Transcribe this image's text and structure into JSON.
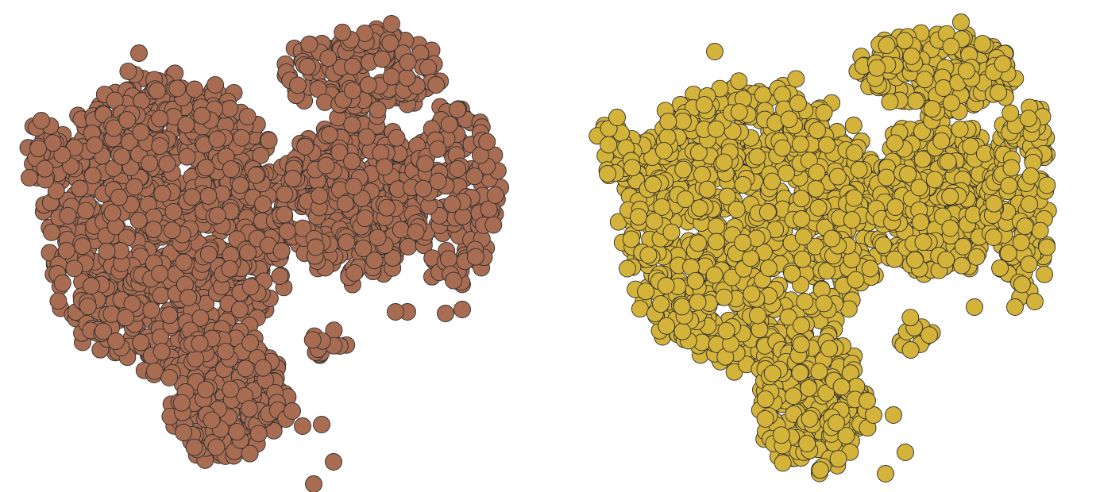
{
  "chart_data": [
    {
      "type": "scatter",
      "title": "",
      "xlabel": "",
      "ylabel": "",
      "grid": false,
      "legend": "none",
      "axes_visible": false,
      "xlim": [
        0,
        620
      ],
      "ylim": [
        0,
        600
      ],
      "marker": {
        "shape": "circle",
        "fill": "#a86c52",
        "edge": "#2e2e2e",
        "opacity": 1
      },
      "series": [
        {
          "regions": [
            {
              "cx": 195,
              "cy": 270,
              "rx": 165,
              "ry": 200,
              "weight": 1000
            },
            {
              "cx": 430,
              "cy": 240,
              "rx": 100,
              "ry": 110,
              "weight": 380
            },
            {
              "cx": 440,
              "cy": 80,
              "rx": 110,
              "ry": 55,
              "weight": 200
            },
            {
              "cx": 560,
              "cy": 230,
              "rx": 60,
              "ry": 130,
              "weight": 170
            },
            {
              "cx": 270,
              "cy": 490,
              "rx": 80,
              "ry": 90,
              "weight": 230
            },
            {
              "cx": 40,
              "cy": 180,
              "rx": 25,
              "ry": 40,
              "weight": 30
            },
            {
              "cx": 400,
              "cy": 420,
              "rx": 25,
              "ry": 25,
              "weight": 12
            }
          ],
          "outliers": [
            [
              478,
              20
            ],
            [
              405,
              572
            ],
            [
              380,
              600
            ],
            [
              390,
              525
            ],
            [
              366,
              527
            ],
            [
              345,
              518
            ],
            [
              160,
              57
            ],
            [
              498,
              383
            ],
            [
              483,
              383
            ],
            [
              546,
              385
            ],
            [
              567,
              380
            ],
            [
              353,
              508
            ],
            [
              22,
              214
            ],
            [
              37,
              142
            ]
          ]
        }
      ]
    },
    {
      "type": "scatter",
      "title": "",
      "xlabel": "",
      "ylabel": "",
      "grid": false,
      "legend": "none",
      "axes_visible": false,
      "xlim": [
        0,
        620
      ],
      "ylim": [
        0,
        600
      ],
      "marker": {
        "shape": "circle",
        "fill": "#d4b33b",
        "edge": "#2e2e2e",
        "opacity": 1
      },
      "series": [
        {
          "regions": [
            {
              "cx": 245,
              "cy": 270,
              "rx": 175,
              "ry": 195,
              "weight": 1000
            },
            {
              "cx": 480,
              "cy": 240,
              "rx": 90,
              "ry": 110,
              "weight": 380
            },
            {
              "cx": 480,
              "cy": 80,
              "rx": 110,
              "ry": 55,
              "weight": 200
            },
            {
              "cx": 590,
              "cy": 240,
              "rx": 50,
              "ry": 130,
              "weight": 170
            },
            {
              "cx": 325,
              "cy": 500,
              "rx": 75,
              "ry": 90,
              "weight": 230
            },
            {
              "cx": 75,
              "cy": 180,
              "rx": 30,
              "ry": 40,
              "weight": 30
            },
            {
              "cx": 450,
              "cy": 410,
              "rx": 25,
              "ry": 25,
              "weight": 12
            }
          ],
          "outliers": [
            [
              510,
              18
            ],
            [
              440,
              560
            ],
            [
              415,
              587
            ],
            [
              400,
              513
            ],
            [
              425,
              513
            ],
            [
              392,
              495
            ],
            [
              200,
              55
            ],
            [
              527,
              377
            ],
            [
              578,
              377
            ],
            [
              603,
              370
            ],
            [
              77,
              138
            ],
            [
              65,
              209
            ]
          ]
        }
      ]
    }
  ]
}
